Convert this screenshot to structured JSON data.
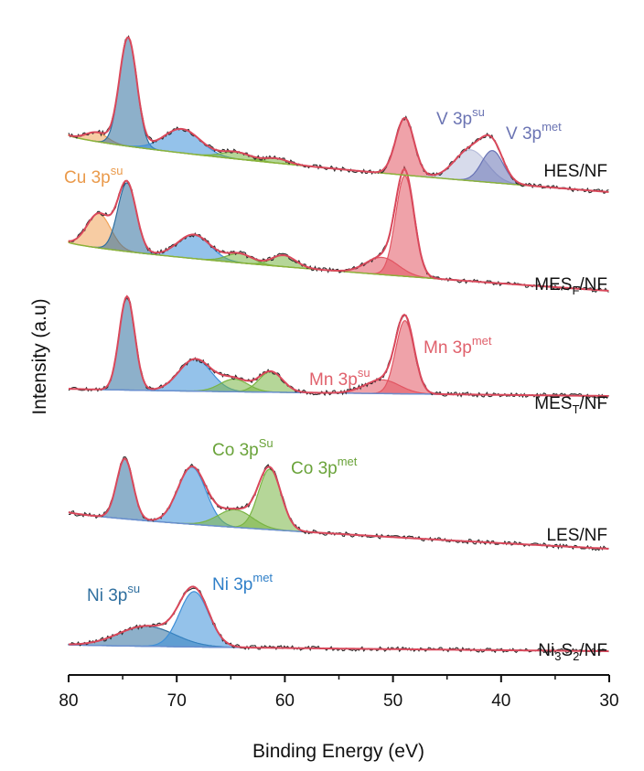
{
  "chart_data": {
    "type": "line",
    "title": "",
    "xlabel": "Binding Energy (eV)",
    "ylabel": "Intensity (a.u)",
    "xlim": [
      80,
      30
    ],
    "x_ticks": [
      80,
      70,
      60,
      50,
      40,
      30
    ],
    "x_tick_labels": [
      "80",
      "70",
      "60",
      "50",
      "40",
      "30"
    ],
    "grid": false,
    "colors": {
      "fit": "#d9485b",
      "raw": "#2b2b2b",
      "baseline": "#6a8fcf",
      "baseline_alt": "#8bb33a",
      "ni": "#3d8fd8",
      "ni_dark": "#2f6f9f",
      "cu": "#f0a258",
      "co": "#79b443",
      "mn": "#e25663",
      "v_su": "#b7bddb",
      "v_met": "#6772b5"
    },
    "series": [
      {
        "name": "Ni3S2/NF",
        "label_main": "Ni",
        "label_sub": "3",
        "label_main2": "S",
        "label_sub2": "2",
        "label_tail": "/NF",
        "baseline_color": "baseline",
        "peaks": [
          {
            "center": 72.8,
            "height": 0.2,
            "width": 2.6,
            "color": "ni_dark"
          },
          {
            "center": 68.4,
            "height": 0.55,
            "width": 1.35,
            "color": "ni"
          }
        ]
      },
      {
        "name": "LES/NF",
        "label_main": "LES/NF",
        "baseline_color": "baseline",
        "peaks": [
          {
            "center": 74.8,
            "height": 0.55,
            "width": 0.75,
            "color": "ni_dark"
          },
          {
            "center": 68.6,
            "height": 0.52,
            "width": 1.3,
            "color": "ni"
          },
          {
            "center": 64.6,
            "height": 0.16,
            "width": 1.6,
            "color": "co"
          },
          {
            "center": 61.4,
            "height": 0.55,
            "width": 1.05,
            "color": "co"
          }
        ]
      },
      {
        "name": "MEST/NF",
        "label_main": "MES",
        "label_sub": "T",
        "label_tail": "/NF",
        "baseline_color": "baseline",
        "peaks": [
          {
            "center": 74.6,
            "height": 0.82,
            "width": 0.72,
            "color": "ni_dark"
          },
          {
            "center": 68.3,
            "height": 0.28,
            "width": 1.5,
            "color": "ni"
          },
          {
            "center": 64.7,
            "height": 0.11,
            "width": 1.3,
            "color": "co"
          },
          {
            "center": 61.3,
            "height": 0.18,
            "width": 1.1,
            "color": "co"
          },
          {
            "center": 51.0,
            "height": 0.12,
            "width": 1.6,
            "color": "mn"
          },
          {
            "center": 48.9,
            "height": 0.64,
            "width": 0.85,
            "color": "mn"
          }
        ]
      },
      {
        "name": "MESF/NF",
        "label_main": "MES",
        "label_sub": "F",
        "label_tail": "/NF",
        "baseline_color": "baseline_alt",
        "peaks": [
          {
            "center": 77.2,
            "height": 0.3,
            "width": 1.1,
            "color": "cu"
          },
          {
            "center": 74.6,
            "height": 0.6,
            "width": 0.85,
            "color": "ni_dark"
          },
          {
            "center": 68.4,
            "height": 0.21,
            "width": 1.5,
            "color": "ni"
          },
          {
            "center": 64.2,
            "height": 0.08,
            "width": 1.2,
            "color": "co"
          },
          {
            "center": 60.1,
            "height": 0.1,
            "width": 1.1,
            "color": "co"
          },
          {
            "center": 51.0,
            "height": 0.15,
            "width": 1.5,
            "color": "mn"
          },
          {
            "center": 48.9,
            "height": 0.88,
            "width": 0.85,
            "color": "mn"
          }
        ]
      },
      {
        "name": "HES/NF",
        "label_main": "HES/NF",
        "baseline_color": "baseline_alt",
        "peaks": [
          {
            "center": 77.4,
            "height": 0.08,
            "width": 1.0,
            "color": "cu"
          },
          {
            "center": 74.5,
            "height": 0.95,
            "width": 0.8,
            "color": "ni_dark"
          },
          {
            "center": 69.5,
            "height": 0.21,
            "width": 1.7,
            "color": "ni"
          },
          {
            "center": 64.5,
            "height": 0.06,
            "width": 1.3,
            "color": "co"
          },
          {
            "center": 60.8,
            "height": 0.04,
            "width": 1.1,
            "color": "co"
          },
          {
            "center": 48.9,
            "height": 0.5,
            "width": 0.85,
            "color": "mn"
          },
          {
            "center": 42.8,
            "height": 0.27,
            "width": 1.5,
            "color": "v_su"
          },
          {
            "center": 40.8,
            "height": 0.28,
            "width": 1.0,
            "color": "v_met"
          }
        ]
      }
    ],
    "annotations": [
      {
        "main": "Ni 3p",
        "sup": "su",
        "color": "ni_dark"
      },
      {
        "main": "Ni 3p",
        "sup": "met",
        "color": "ni"
      },
      {
        "main": "Co 3p",
        "sup": "Su",
        "color": "co"
      },
      {
        "main": "Co 3p",
        "sup": "met",
        "color": "co"
      },
      {
        "main": "Mn 3p",
        "sup": "su",
        "color": "mn"
      },
      {
        "main": "Mn 3p",
        "sup": "met",
        "color": "mn"
      },
      {
        "main": "Cu 3p",
        "sup": "su",
        "color": "cu"
      },
      {
        "main": "V 3p",
        "sup": "su",
        "color": "v_met"
      },
      {
        "main": "V 3p",
        "sup": "met",
        "color": "v_met"
      }
    ]
  }
}
